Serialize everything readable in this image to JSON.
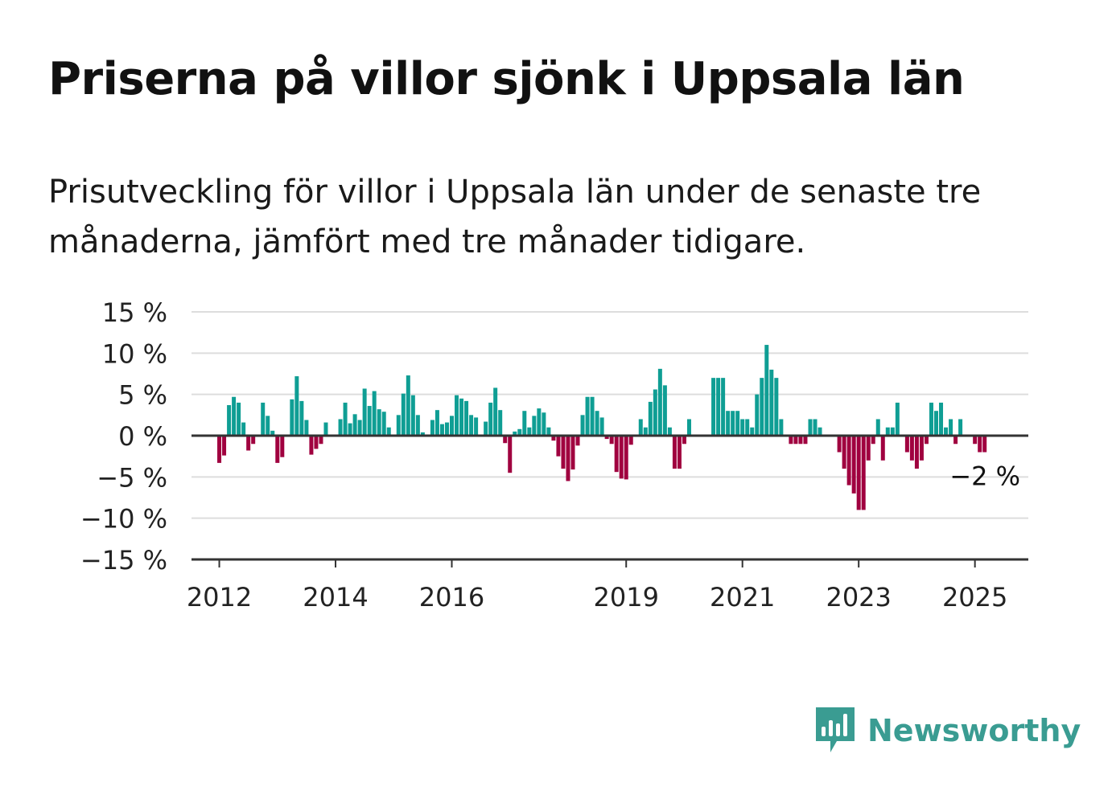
{
  "title": "Priserna på villor sjönk i Uppsala län",
  "subtitle": "Prisutveckling för villor i Uppsala län under de senaste tre månaderna, jämfört med tre månader tidigare.",
  "brand": {
    "name": "Newsworthy",
    "icon": "newsworthy-bar-chart-icon",
    "color": "#3a9c92"
  },
  "colors": {
    "positive": "#0f9e94",
    "negative": "#a0003f",
    "grid": "#dddddd",
    "axis": "#333333"
  },
  "chart_data": {
    "type": "bar",
    "x_start": "2011-11",
    "y_unit": "%",
    "ylim": [
      -15,
      15
    ],
    "yticks": [
      15,
      10,
      5,
      0,
      -5,
      -10,
      -15
    ],
    "ytick_labels": [
      "15 %",
      "10 %",
      "5 %",
      "0 %",
      "−5 %",
      "−10 %",
      "−15 %"
    ],
    "xticks": [
      {
        "label": "2012",
        "month": "2012-01"
      },
      {
        "label": "2014",
        "month": "2014-01"
      },
      {
        "label": "2016",
        "month": "2016-01"
      },
      {
        "label": "2019",
        "month": "2019-01"
      },
      {
        "label": "2021",
        "month": "2021-01"
      },
      {
        "label": "2023",
        "month": "2023-01"
      },
      {
        "label": "2025",
        "month": "2025-01"
      }
    ],
    "grid": true,
    "last_value_label": "−2 %",
    "values": [
      0,
      0,
      -3.3,
      -2.4,
      3.7,
      4.7,
      4,
      1.6,
      -1.8,
      -1,
      0,
      4,
      2.4,
      0.6,
      -3.3,
      -2.6,
      0,
      4.4,
      7.2,
      4.2,
      1.9,
      -2.3,
      -1.6,
      -1,
      1.6,
      0,
      0,
      2,
      4,
      1.5,
      2.6,
      1.9,
      5.7,
      3.6,
      5.4,
      3.2,
      2.9,
      1,
      0,
      2.5,
      5.1,
      7.3,
      4.9,
      2.5,
      0.4,
      0,
      1.9,
      3.1,
      1.4,
      1.6,
      2.4,
      4.9,
      4.5,
      4.2,
      2.5,
      2.2,
      0,
      1.7,
      4,
      5.8,
      3.1,
      -0.9,
      -4.5,
      0.5,
      0.8,
      3,
      1,
      2.4,
      3.3,
      2.8,
      1,
      -0.6,
      -2.5,
      -4,
      -5.5,
      -4.1,
      -1.2,
      2.5,
      4.7,
      4.7,
      3,
      2.2,
      -0.4,
      -1,
      -4.4,
      -5.2,
      -5.3,
      -1.1,
      0,
      2,
      1,
      4.1,
      5.6,
      8.1,
      6.1,
      1,
      -4,
      -4,
      -1,
      2,
      0,
      0,
      0,
      0,
      7,
      7,
      7,
      3,
      3,
      3,
      2,
      2,
      1,
      5,
      7,
      11,
      8,
      7,
      2,
      0,
      -1,
      -1,
      -1,
      -1,
      2,
      2,
      1,
      0,
      0,
      0,
      -2,
      -4,
      -6,
      -7,
      -9,
      -9,
      -3,
      -1,
      2,
      -3,
      1,
      1,
      4,
      0,
      -2,
      -3,
      -4,
      -3,
      -1,
      4,
      3,
      4,
      1,
      2,
      -1,
      2,
      0,
      0,
      -1,
      -2,
      -2
    ]
  }
}
